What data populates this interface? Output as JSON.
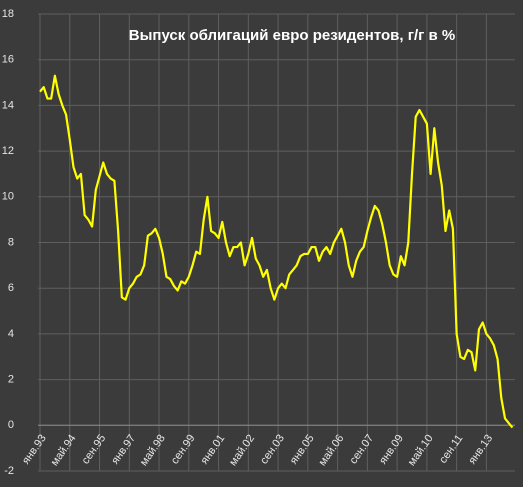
{
  "chart_data": {
    "type": "line",
    "title": "Выпуск облигаций евро резидентов, г/г в %",
    "categories": [
      "янв.93",
      null,
      null,
      null,
      null,
      null,
      null,
      null,
      "май.94",
      null,
      null,
      null,
      null,
      null,
      null,
      null,
      "сен.95",
      null,
      null,
      null,
      null,
      null,
      null,
      null,
      "янв.97",
      null,
      null,
      null,
      null,
      null,
      null,
      null,
      "май.98",
      null,
      null,
      null,
      null,
      null,
      null,
      null,
      "сен.99",
      null,
      null,
      null,
      null,
      null,
      null,
      null,
      "янв.01",
      null,
      null,
      null,
      null,
      null,
      null,
      null,
      "май.02",
      null,
      null,
      null,
      null,
      null,
      null,
      null,
      "сен.03",
      null,
      null,
      null,
      null,
      null,
      null,
      null,
      "янв.05",
      null,
      null,
      null,
      null,
      null,
      null,
      null,
      "май.06",
      null,
      null,
      null,
      null,
      null,
      null,
      null,
      "сен.07",
      null,
      null,
      null,
      null,
      null,
      null,
      null,
      "янв.09",
      null,
      null,
      null,
      null,
      null,
      null,
      null,
      "май.10",
      null,
      null,
      null,
      null,
      null,
      null,
      null,
      "сен.11",
      null,
      null,
      null,
      null,
      null,
      null,
      null,
      "янв.13",
      null,
      null,
      null,
      null,
      null,
      null,
      null
    ],
    "series": [
      {
        "color": "#ffff00",
        "values": [
          14.6,
          14.8,
          14.3,
          14.3,
          15.3,
          14.5,
          14.0,
          13.6,
          12.5,
          11.3,
          10.8,
          11.0,
          9.2,
          9.0,
          8.7,
          10.3,
          10.9,
          11.5,
          11.0,
          10.8,
          10.7,
          8.5,
          5.6,
          5.5,
          6.0,
          6.2,
          6.5,
          6.6,
          7.0,
          8.3,
          8.4,
          8.6,
          8.2,
          7.5,
          6.5,
          6.4,
          6.1,
          5.9,
          6.3,
          6.2,
          6.5,
          7.0,
          7.6,
          7.5,
          9.0,
          10.0,
          8.5,
          8.4,
          8.2,
          8.9,
          8.0,
          7.4,
          7.8,
          7.8,
          8.0,
          7.0,
          7.5,
          8.2,
          7.3,
          7.0,
          6.5,
          6.8,
          6.0,
          5.5,
          6.0,
          6.2,
          6.0,
          6.6,
          6.8,
          7.0,
          7.4,
          7.5,
          7.5,
          7.8,
          7.8,
          7.2,
          7.6,
          7.8,
          7.5,
          8.0,
          8.3,
          8.6,
          8.0,
          7.0,
          6.5,
          7.2,
          7.6,
          7.8,
          8.5,
          9.1,
          9.6,
          9.4,
          8.8,
          8.0,
          7.0,
          6.6,
          6.5,
          7.4,
          7.0,
          8.0,
          11.0,
          13.5,
          13.8,
          13.5,
          13.2,
          11.0,
          13.0,
          11.5,
          10.5,
          8.5,
          9.4,
          8.6,
          4.0,
          3.0,
          2.9,
          3.3,
          3.2,
          2.4,
          4.2,
          4.5,
          4.0,
          3.8,
          3.5,
          2.9,
          1.2,
          0.3,
          0.1,
          -0.1
        ]
      }
    ],
    "ylim": [
      -2,
      18
    ],
    "yticks": [
      -2,
      0,
      2,
      4,
      6,
      8,
      10,
      12,
      14,
      16,
      18
    ],
    "grid": true
  }
}
